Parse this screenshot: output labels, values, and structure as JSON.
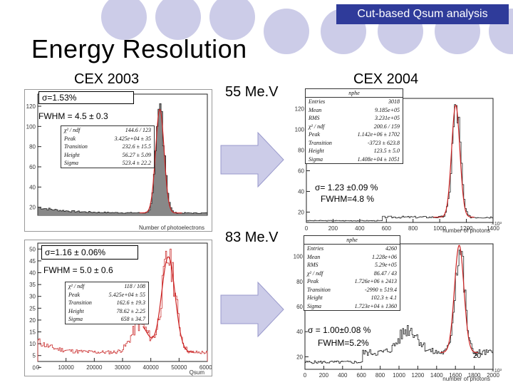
{
  "header": {
    "tag": "Cut-based Qsum analysis",
    "title": "Energy Resolution"
  },
  "sections": {
    "cex2003": "CEX 2003",
    "cex2004": "CEX 2004",
    "energy1": "55 Me.V",
    "energy2": "83 Me.V"
  },
  "plot_tl": {
    "sigma": "σ=1.53%",
    "fwhm": "FWHM = 4.5 ± 0.3",
    "xlabel": "Number of photoelectrons",
    "yticks": [
      "120",
      "100",
      "80",
      "60",
      "40",
      "20"
    ],
    "stats": [
      [
        "χ² / ndf",
        "144.6 / 123"
      ],
      [
        "Peak",
        "3.425e+04 ± 35"
      ],
      [
        "Transition",
        "232.6 ± 15.5"
      ],
      [
        "Height",
        "56.27 ± 5.09"
      ],
      [
        "Sigma",
        "523.4 ± 22.2"
      ]
    ]
  },
  "plot_tr": {
    "sigma": "σ= 1.23 ±0.09 %",
    "fwhm": "FWHM=4.8 %",
    "xlabel": "number of photons",
    "xticks": [
      "0",
      "200",
      "400",
      "600",
      "800",
      "1000",
      "1200",
      "1400"
    ],
    "yticks": [
      "120",
      "100",
      "80",
      "60",
      "40",
      "20"
    ],
    "xunit": "×10³",
    "stat_title": "nphe",
    "stats": [
      [
        "Entries",
        "3018"
      ],
      [
        "Mean",
        "9.185e+05"
      ],
      [
        "RMS",
        "3.231e+05"
      ],
      [
        "χ² / ndf",
        "200.6 / 159"
      ],
      [
        "Peak",
        "1.142e+06 ± 1702"
      ],
      [
        "Transition",
        "-3723 ± 623.8"
      ],
      [
        "Height",
        "123.5 ± 5.0"
      ],
      [
        "Sigma",
        "1.408e+04 ± 1051"
      ]
    ]
  },
  "plot_bl": {
    "sigma": "σ=1.16 ± 0.06%",
    "fwhm": "FWHM = 5.0 ± 0.6",
    "xlabel": "Qsum",
    "xticks": [
      "0",
      "10000",
      "20000",
      "30000",
      "40000",
      "50000",
      "60000"
    ],
    "yticks": [
      "50",
      "45",
      "40",
      "35",
      "30",
      "25",
      "20",
      "15",
      "10",
      "5",
      "0"
    ],
    "stats": [
      [
        "χ² / ndf",
        "118 / 108"
      ],
      [
        "Peak",
        "5.425e+04 ± 55"
      ],
      [
        "Transition",
        "162.6 ± 19.3"
      ],
      [
        "Height",
        "78.62 ± 2.25"
      ],
      [
        "Sigma",
        "658 ± 34.7"
      ]
    ]
  },
  "plot_br": {
    "sigma": "σ = 1.00±0.08 %",
    "fwhm": "FWHM=5.2%",
    "xlabel": "number of photons",
    "xticks": [
      "0",
      "200",
      "400",
      "600",
      "800",
      "1000",
      "1200",
      "1400",
      "1600",
      "1800",
      "2000"
    ],
    "yticks": [
      "100",
      "80",
      "60",
      "40",
      "20"
    ],
    "xunit": "×10³",
    "stat_title": "nphe",
    "stats": [
      [
        "Entries",
        "4260"
      ],
      [
        "Mean",
        "1.228e+06"
      ],
      [
        "RMS",
        "5.29e+05"
      ],
      [
        "χ² / ndf",
        "86.47 / 43"
      ],
      [
        "Peak",
        "1.726e+06 ± 2413"
      ],
      [
        "Transition",
        "-2990 ± 519.4"
      ],
      [
        "Height",
        "102.3 ± 4.1"
      ],
      [
        "Sigma",
        "1.723e+04 ± 1360"
      ]
    ]
  },
  "page_number": "20",
  "colors": {
    "accent": "#2f3b9a",
    "circle": "#cccce8",
    "fit": "#cc2222"
  }
}
